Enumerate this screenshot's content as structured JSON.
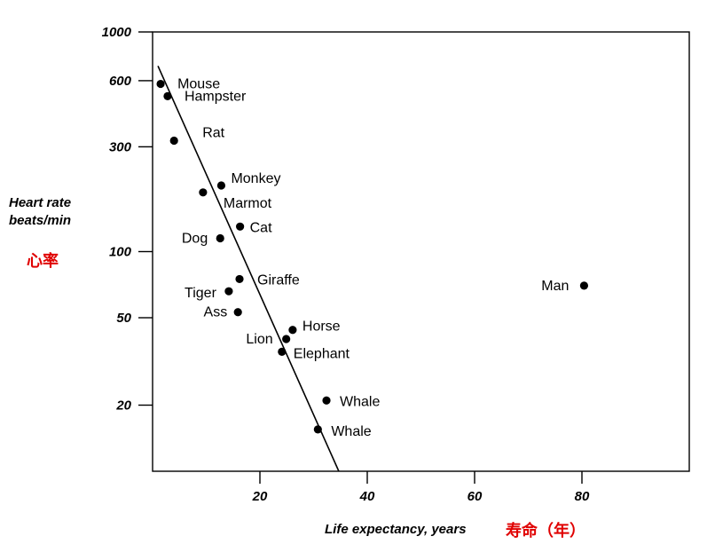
{
  "chart_data": {
    "type": "scatter",
    "ylabel_line1": "Heart rate",
    "ylabel_line2": "beats/min",
    "ylabel_cn": "心率",
    "xlabel": "Life expectancy, years",
    "xlabel_cn": "寿命（年）",
    "y_scale": "log",
    "ylim": [
      10,
      1000
    ],
    "xlim": [
      0,
      100
    ],
    "x_ticks": [
      20,
      40,
      60,
      80
    ],
    "y_ticks": [
      1000,
      600,
      300,
      100,
      50,
      20
    ],
    "grid": false,
    "line_color": "#000000",
    "label_color": "#e00000",
    "points": [
      {
        "name": "Mouse",
        "x": 1.5,
        "y": 580
      },
      {
        "name": "Hampster",
        "x": 2.8,
        "y": 510
      },
      {
        "name": "Rat",
        "x": 4,
        "y": 320
      },
      {
        "name": "Monkey",
        "x": 12.8,
        "y": 200
      },
      {
        "name": "Marmot",
        "x": 9.4,
        "y": 186
      },
      {
        "name": "Cat",
        "x": 16.3,
        "y": 130
      },
      {
        "name": "Dog",
        "x": 12.6,
        "y": 115
      },
      {
        "name": "Giraffe",
        "x": 16.2,
        "y": 75
      },
      {
        "name": "Tiger",
        "x": 14.2,
        "y": 66
      },
      {
        "name": "Ass",
        "x": 15.9,
        "y": 53
      },
      {
        "name": "Horse",
        "x": 26.1,
        "y": 44
      },
      {
        "name": "Lion",
        "x": 24.9,
        "y": 40
      },
      {
        "name": "Elephant",
        "x": 24.1,
        "y": 35
      },
      {
        "name": "Whale",
        "x": 32.4,
        "y": 21
      },
      {
        "name": "Whale",
        "x": 30.8,
        "y": 15.5
      },
      {
        "name": "Man",
        "x": 80.4,
        "y": 70
      }
    ],
    "trend_line": [
      {
        "x": 1,
        "y": 700
      },
      {
        "x": 34.7,
        "y": 9.8
      }
    ]
  }
}
